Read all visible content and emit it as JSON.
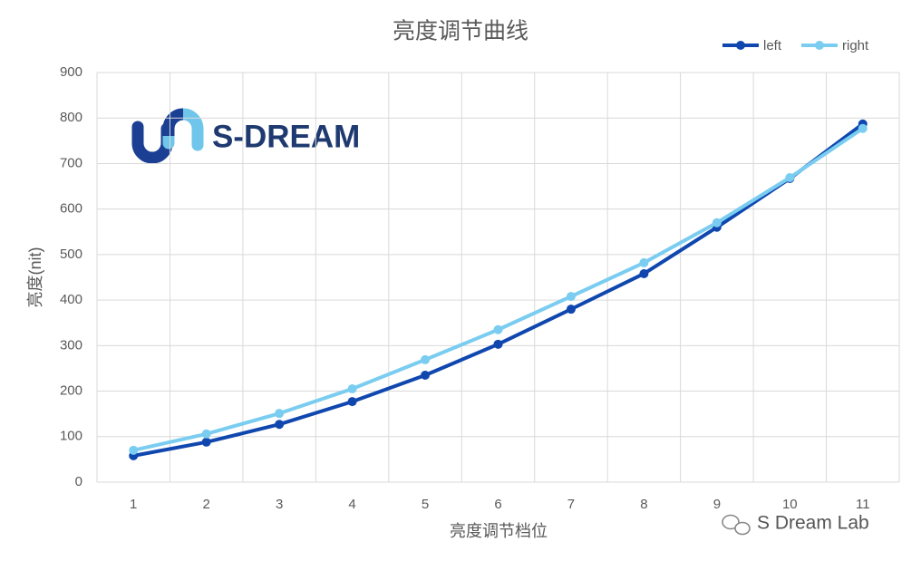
{
  "chart_data": {
    "type": "line",
    "title": "亮度调节曲线",
    "x_label": "亮度调节档位",
    "y_label": "亮度(nit)",
    "categories": [
      "1",
      "2",
      "3",
      "4",
      "5",
      "6",
      "7",
      "8",
      "9",
      "10",
      "11"
    ],
    "series": [
      {
        "name": "left",
        "color": "#0f47af",
        "values": [
          58,
          88,
          127,
          177,
          235,
          303,
          380,
          458,
          560,
          667,
          787
        ]
      },
      {
        "name": "right",
        "color": "#7acdf0",
        "values": [
          70,
          106,
          151,
          205,
          269,
          335,
          408,
          482,
          570,
          669,
          777
        ]
      }
    ],
    "ylim": [
      0,
      900
    ],
    "yticks": [
      0,
      100,
      200,
      300,
      400,
      500,
      600,
      700,
      800,
      900
    ],
    "grid": true,
    "legend": "top-right",
    "logo_text": "S-DREAM",
    "watermark": "S Dream Lab"
  }
}
